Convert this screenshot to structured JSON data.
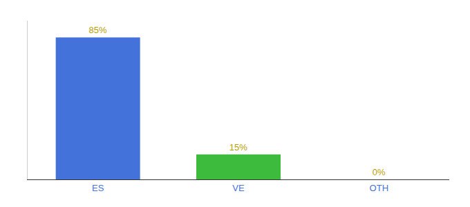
{
  "chart_data": {
    "type": "bar",
    "categories": [
      "ES",
      "VE",
      "OTH"
    ],
    "values": [
      85,
      15,
      0
    ],
    "value_labels": [
      "85%",
      "15%",
      "0%"
    ],
    "colors": [
      "#4472db",
      "#3dbb3d",
      "#cccccc"
    ],
    "ylim": [
      0,
      95
    ],
    "data_labels": true,
    "tick_labels": "x",
    "grid": false
  }
}
